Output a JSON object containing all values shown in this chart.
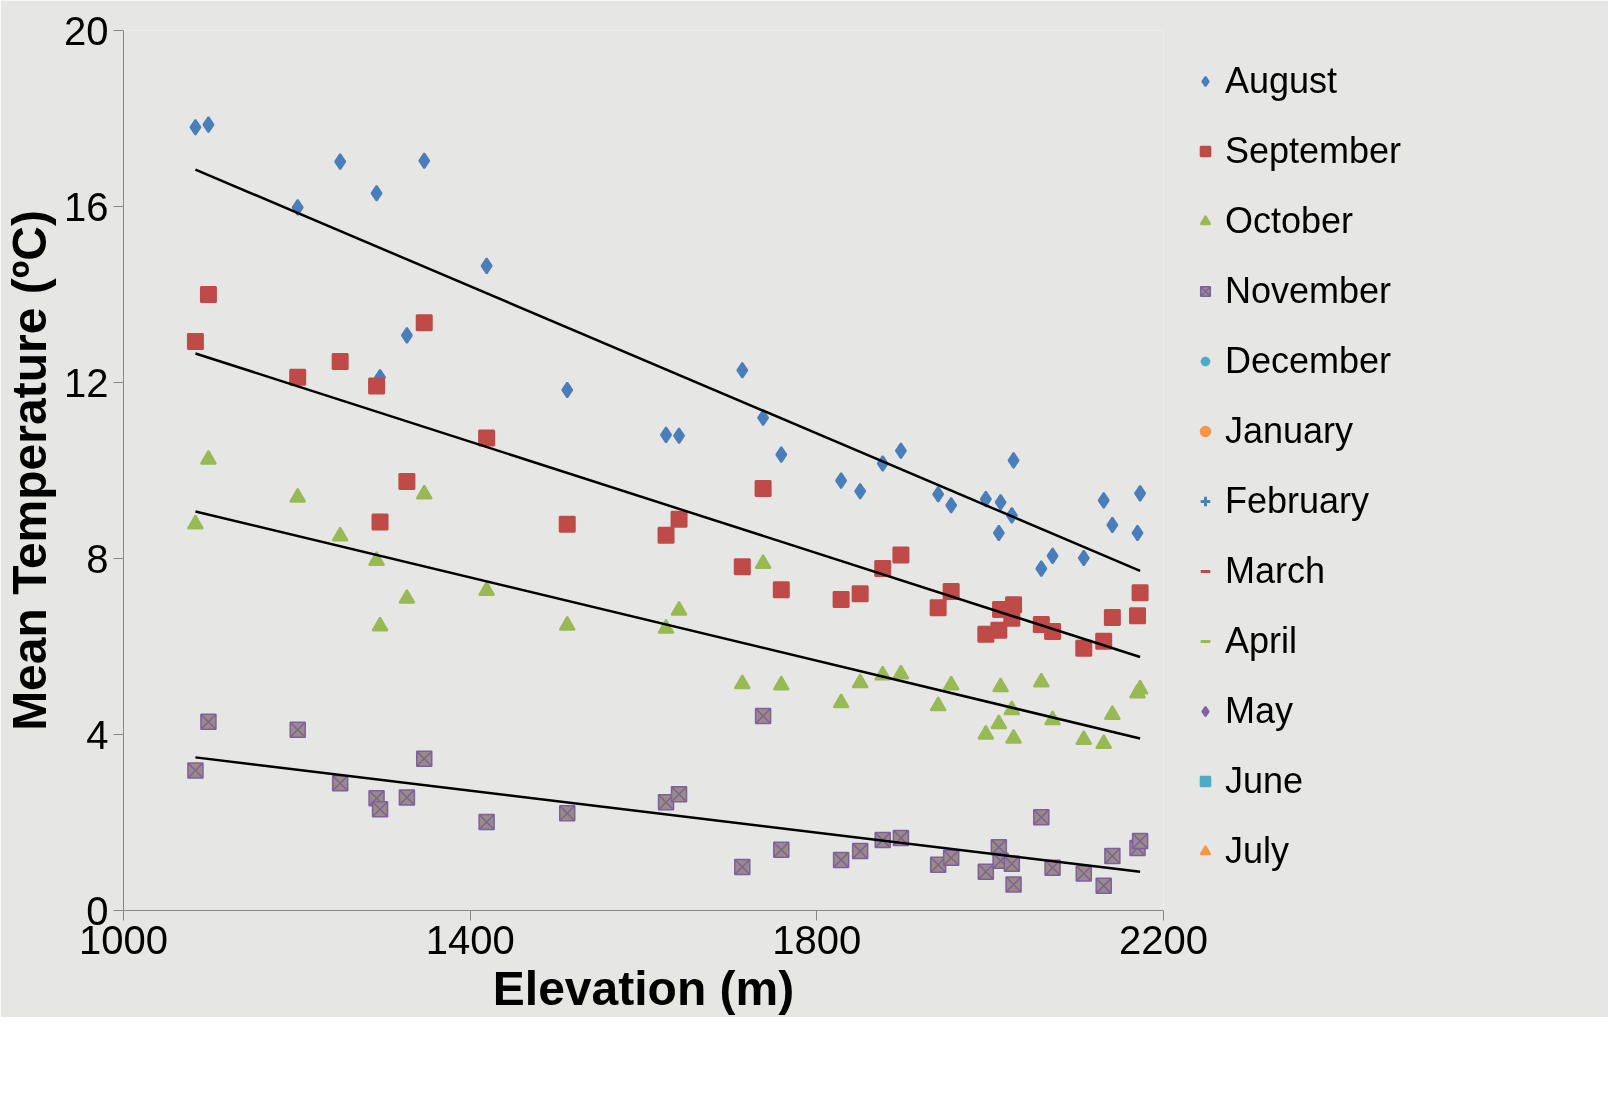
{
  "chart_data": {
    "type": "scatter",
    "xlabel": "Elevation (m)",
    "ylabel": "Mean Temperature (ºC)",
    "xlim": [
      1000,
      2200
    ],
    "xticks": [
      1000,
      1400,
      1800,
      2200
    ],
    "ylim": [
      0,
      20
    ],
    "yticks": [
      0,
      4,
      8,
      12,
      16,
      20
    ],
    "legend": "right",
    "series": [
      {
        "name": "August",
        "color": "#4a7ebb",
        "marker": "diamond",
        "x": [
          1083,
          1098,
          1201,
          1250,
          1292,
          1296,
          1327,
          1347,
          1419,
          1512,
          1626,
          1641,
          1714,
          1738,
          1759,
          1828,
          1850,
          1876,
          1897,
          1940,
          1955,
          1995,
          2010,
          2012,
          2025,
          2027,
          2059,
          2072,
          2108,
          2131,
          2141,
          2170,
          2173
        ],
        "values": [
          17.8,
          17.86,
          15.98,
          17.02,
          16.3,
          12.12,
          13.07,
          17.04,
          14.65,
          11.83,
          10.81,
          10.79,
          12.28,
          11.2,
          10.36,
          9.77,
          9.53,
          10.16,
          10.45,
          9.46,
          9.21,
          9.35,
          8.58,
          9.28,
          8.98,
          10.23,
          7.77,
          8.06,
          8.01,
          9.32,
          8.76,
          8.58,
          9.48
        ]
      },
      {
        "name": "September",
        "color": "#be4b48",
        "marker": "square",
        "x": [
          1083,
          1098,
          1201,
          1250,
          1292,
          1296,
          1327,
          1347,
          1419,
          1512,
          1626,
          1641,
          1714,
          1738,
          1759,
          1828,
          1850,
          1876,
          1897,
          1940,
          1955,
          1995,
          2010,
          2012,
          2025,
          2027,
          2059,
          2072,
          2108,
          2131,
          2141,
          2170,
          2173
        ],
        "values": [
          12.93,
          14.0,
          12.12,
          12.48,
          11.92,
          8.83,
          9.75,
          13.36,
          10.74,
          8.78,
          8.53,
          8.89,
          7.81,
          9.59,
          7.29,
          7.07,
          7.2,
          7.77,
          8.08,
          6.88,
          7.25,
          6.28,
          6.37,
          6.84,
          6.64,
          6.95,
          6.5,
          6.34,
          5.96,
          6.12,
          6.66,
          6.7,
          7.22
        ]
      },
      {
        "name": "October",
        "color": "#98b954",
        "marker": "triangle",
        "x": [
          1083,
          1098,
          1201,
          1250,
          1292,
          1296,
          1327,
          1347,
          1419,
          1512,
          1626,
          1641,
          1714,
          1738,
          1759,
          1828,
          1850,
          1876,
          1897,
          1940,
          1955,
          1995,
          2010,
          2012,
          2025,
          2027,
          2059,
          2072,
          2108,
          2131,
          2141,
          2170,
          2173
        ],
        "values": [
          8.78,
          10.25,
          9.39,
          8.51,
          7.95,
          6.46,
          7.09,
          9.46,
          7.27,
          6.48,
          6.41,
          6.82,
          5.15,
          7.88,
          5.12,
          4.72,
          5.17,
          5.35,
          5.37,
          4.65,
          5.12,
          4.0,
          4.24,
          5.08,
          4.56,
          3.91,
          5.19,
          4.33,
          3.88,
          3.79,
          4.45,
          4.94,
          5.03
        ]
      },
      {
        "name": "November",
        "color": "#7d60a0",
        "marker": "x",
        "x": [
          1083,
          1098,
          1201,
          1250,
          1292,
          1296,
          1327,
          1347,
          1419,
          1512,
          1626,
          1641,
          1714,
          1738,
          1759,
          1828,
          1850,
          1876,
          1897,
          1940,
          1955,
          1995,
          2010,
          2012,
          2025,
          2027,
          2059,
          2072,
          2108,
          2131,
          2141,
          2170,
          2173
        ],
        "values": [
          3.18,
          4.29,
          4.11,
          2.89,
          2.55,
          2.3,
          2.57,
          3.45,
          2.01,
          2.21,
          2.46,
          2.64,
          0.99,
          4.42,
          1.38,
          1.15,
          1.35,
          1.6,
          1.65,
          1.04,
          1.2,
          0.88,
          1.44,
          1.13,
          1.06,
          0.59,
          2.12,
          0.97,
          0.84,
          0.56,
          1.24,
          1.42,
          1.58
        ]
      },
      {
        "name": "December",
        "color": "#4bacc6",
        "marker": "star"
      },
      {
        "name": "January",
        "color": "#f79646",
        "marker": "circle"
      },
      {
        "name": "February",
        "color": "#4a7ebb",
        "marker": "cross"
      },
      {
        "name": "March",
        "color": "#be4b48",
        "marker": "dash"
      },
      {
        "name": "April",
        "color": "#98b954",
        "marker": "dash"
      },
      {
        "name": "May",
        "color": "#8064a2",
        "marker": "diamond"
      },
      {
        "name": "June",
        "color": "#4bacc6",
        "marker": "square"
      },
      {
        "name": "July",
        "color": "#f79646",
        "marker": "triangle"
      },
      {
        "type": "line",
        "color": "#000000",
        "x": [
          1083,
          2173
        ],
        "values": [
          16.84,
          7.72
        ]
      },
      {
        "type": "line",
        "color": "#000000",
        "x": [
          1083,
          2173
        ],
        "values": [
          12.66,
          5.76
        ]
      },
      {
        "type": "line",
        "color": "#000000",
        "x": [
          1083,
          2173
        ],
        "values": [
          9.07,
          3.91
        ]
      },
      {
        "type": "line",
        "color": "#000000",
        "x": [
          1083,
          2173
        ],
        "values": [
          3.48,
          0.88
        ]
      }
    ]
  }
}
